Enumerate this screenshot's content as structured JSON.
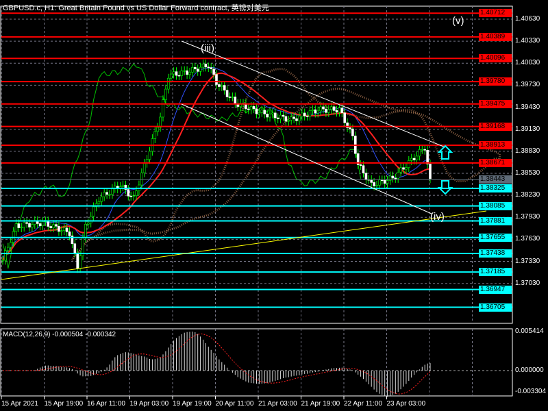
{
  "header": {
    "title": "GBPUSD.c, H1:  Great Britain Pound vs US Dollar Forward contract, 英镑对美元"
  },
  "colors": {
    "background": "#000000",
    "bull_candle": "#00ff00",
    "resistance": "#ff0000",
    "support": "#00ffff",
    "trendline": "#ffff00",
    "channel": "#ffffff",
    "current_price": "#5f6b78"
  },
  "price_axis": [
    "1.40630",
    "1.40330",
    "1.40030",
    "1.39730",
    "1.39430",
    "1.39130",
    "1.38830",
    "1.38530",
    "1.38230",
    "1.37930",
    "1.37630",
    "1.37330",
    "1.37030"
  ],
  "resistance_levels": [
    "1.40712",
    "1.40389",
    "1.40096",
    "1.39780",
    "1.39475",
    "1.39168",
    "1.38913",
    "1.38671"
  ],
  "support_levels": [
    "1.38325",
    "1.38085",
    "1.37881",
    "1.37655",
    "1.37438",
    "1.37185",
    "1.36947",
    "1.36705"
  ],
  "current_price": "1.38443",
  "wave_labels": {
    "iii": "(iii)",
    "iv": "(iv)",
    "v": "(v)"
  },
  "close_path": [
    [
      0,
      1.37345
    ],
    [
      5,
      1.37811
    ],
    [
      15,
      1.37858
    ],
    [
      25,
      1.37718
    ],
    [
      28,
      1.37251
    ],
    [
      31,
      1.37811
    ],
    [
      36,
      1.38185
    ],
    [
      44,
      1.38371
    ],
    [
      49,
      1.38185
    ],
    [
      54,
      1.38745
    ],
    [
      59,
      1.39305
    ],
    [
      62,
      1.39865
    ],
    [
      69,
      1.39911
    ],
    [
      77,
      1.40005
    ],
    [
      80,
      1.39771
    ],
    [
      87,
      1.39491
    ],
    [
      97,
      1.39351
    ],
    [
      108,
      1.39258
    ],
    [
      118,
      1.39398
    ],
    [
      126,
      1.39398
    ],
    [
      131,
      1.39025
    ],
    [
      133,
      1.38651
    ],
    [
      138,
      1.38371
    ],
    [
      146,
      1.38465
    ],
    [
      154,
      1.38745
    ],
    [
      158,
      1.38885
    ],
    [
      160,
      1.38418
    ]
  ],
  "macd": {
    "label": "MACD(12,26,9) -0.000504 -0.000342",
    "max": "0.005414",
    "zero": "0.000000",
    "min": "-0.003304"
  },
  "time_axis": [
    "15 Apr 2021",
    "15 Apr 19:00",
    "16 Apr 11:00",
    "19 Apr 03:00",
    "19 Apr 19:00",
    "20 Apr 11:00",
    "21 Apr 03:00",
    "21 Apr 19:00",
    "22 Apr 11:00",
    "23 Apr 03:00"
  ]
}
